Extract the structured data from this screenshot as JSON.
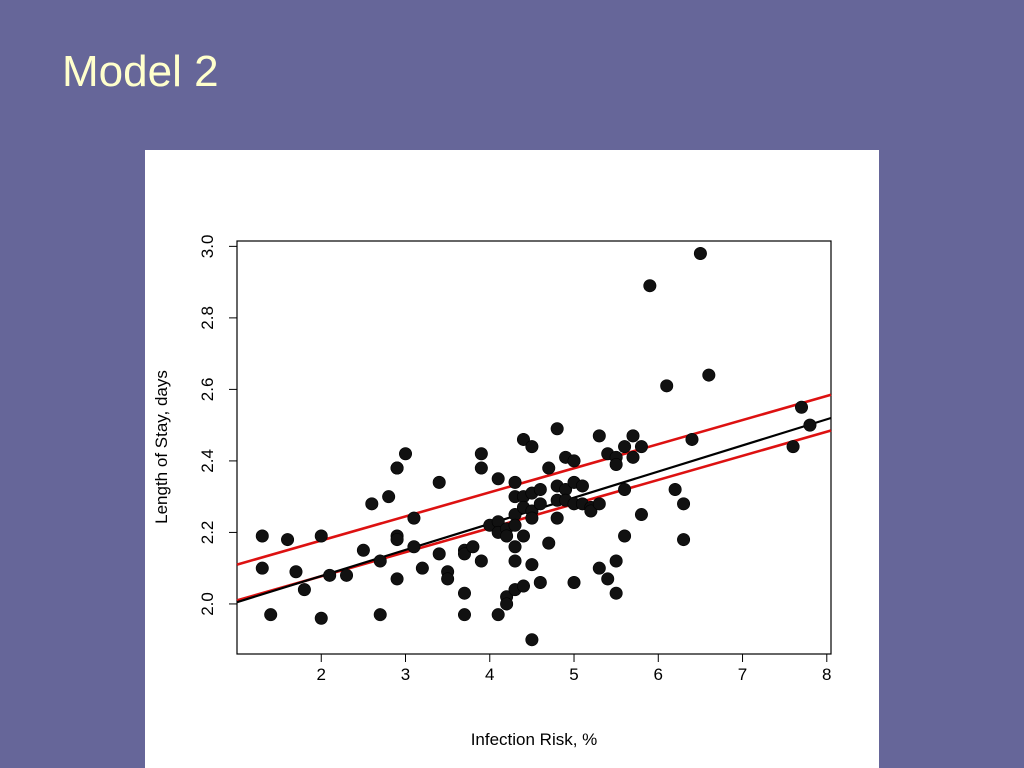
{
  "slide": {
    "title": "Model 2"
  },
  "chart_data": {
    "type": "scatter",
    "xlabel": "Infection Risk, %",
    "ylabel": "Length of Stay, days",
    "xlim": [
      1.0,
      8.05
    ],
    "ylim": [
      1.86,
      3.015
    ],
    "x_ticks": [
      "2",
      "3",
      "4",
      "5",
      "6",
      "7",
      "8"
    ],
    "y_ticks": [
      "2.0",
      "2.2",
      "2.4",
      "2.6",
      "2.8",
      "3.0"
    ],
    "grid": false,
    "legend": "none",
    "colors": {
      "points": "#111111",
      "fit": "#000000",
      "band": "#DD1111"
    },
    "points": [
      [
        1.3,
        2.19
      ],
      [
        1.3,
        2.1
      ],
      [
        1.4,
        1.97
      ],
      [
        1.6,
        2.18
      ],
      [
        1.7,
        2.09
      ],
      [
        1.8,
        2.04
      ],
      [
        2.0,
        2.19
      ],
      [
        2.0,
        1.96
      ],
      [
        2.1,
        2.08
      ],
      [
        2.3,
        2.08
      ],
      [
        2.5,
        2.15
      ],
      [
        2.6,
        2.28
      ],
      [
        2.7,
        2.12
      ],
      [
        2.7,
        1.97
      ],
      [
        2.8,
        2.3
      ],
      [
        2.9,
        2.38
      ],
      [
        2.9,
        2.38
      ],
      [
        2.9,
        2.19
      ],
      [
        2.9,
        2.18
      ],
      [
        2.9,
        2.07
      ],
      [
        3.0,
        2.42
      ],
      [
        3.1,
        2.24
      ],
      [
        3.1,
        2.16
      ],
      [
        3.2,
        2.1
      ],
      [
        3.4,
        2.34
      ],
      [
        3.4,
        2.14
      ],
      [
        3.5,
        2.09
      ],
      [
        3.5,
        2.07
      ],
      [
        3.7,
        2.15
      ],
      [
        3.7,
        2.14
      ],
      [
        3.7,
        2.03
      ],
      [
        3.7,
        1.97
      ],
      [
        3.8,
        2.16
      ],
      [
        3.9,
        2.42
      ],
      [
        3.9,
        2.38
      ],
      [
        3.9,
        2.12
      ],
      [
        4.0,
        2.22
      ],
      [
        4.1,
        2.35
      ],
      [
        4.1,
        2.23
      ],
      [
        4.1,
        2.2
      ],
      [
        4.1,
        1.97
      ],
      [
        4.2,
        2.21
      ],
      [
        4.2,
        2.19
      ],
      [
        4.2,
        2.02
      ],
      [
        4.2,
        2.0
      ],
      [
        4.3,
        2.34
      ],
      [
        4.3,
        2.3
      ],
      [
        4.3,
        2.25
      ],
      [
        4.3,
        2.22
      ],
      [
        4.3,
        2.16
      ],
      [
        4.3,
        2.12
      ],
      [
        4.3,
        2.04
      ],
      [
        4.4,
        2.46
      ],
      [
        4.4,
        2.3
      ],
      [
        4.4,
        2.27
      ],
      [
        4.4,
        2.19
      ],
      [
        4.4,
        2.05
      ],
      [
        4.5,
        2.44
      ],
      [
        4.5,
        2.31
      ],
      [
        4.5,
        2.26
      ],
      [
        4.5,
        2.24
      ],
      [
        4.5,
        2.11
      ],
      [
        4.5,
        1.9
      ],
      [
        4.6,
        2.32
      ],
      [
        4.6,
        2.28
      ],
      [
        4.6,
        2.06
      ],
      [
        4.7,
        2.38
      ],
      [
        4.7,
        2.17
      ],
      [
        4.8,
        2.49
      ],
      [
        4.8,
        2.33
      ],
      [
        4.8,
        2.29
      ],
      [
        4.8,
        2.24
      ],
      [
        4.9,
        2.41
      ],
      [
        4.9,
        2.32
      ],
      [
        4.9,
        2.29
      ],
      [
        5.0,
        2.4
      ],
      [
        5.0,
        2.34
      ],
      [
        5.0,
        2.28
      ],
      [
        5.0,
        2.06
      ],
      [
        5.1,
        2.33
      ],
      [
        5.1,
        2.28
      ],
      [
        5.2,
        2.27
      ],
      [
        5.2,
        2.26
      ],
      [
        5.3,
        2.47
      ],
      [
        5.3,
        2.28
      ],
      [
        5.3,
        2.1
      ],
      [
        5.4,
        2.42
      ],
      [
        5.4,
        2.07
      ],
      [
        5.5,
        2.41
      ],
      [
        5.5,
        2.39
      ],
      [
        5.5,
        2.12
      ],
      [
        5.5,
        2.03
      ],
      [
        5.6,
        2.44
      ],
      [
        5.6,
        2.32
      ],
      [
        5.6,
        2.19
      ],
      [
        5.7,
        2.47
      ],
      [
        5.7,
        2.41
      ],
      [
        5.8,
        2.44
      ],
      [
        5.8,
        2.25
      ],
      [
        5.9,
        2.89
      ],
      [
        6.1,
        2.61
      ],
      [
        6.2,
        2.32
      ],
      [
        6.3,
        2.28
      ],
      [
        6.3,
        2.18
      ],
      [
        6.4,
        2.46
      ],
      [
        6.5,
        2.98
      ],
      [
        6.6,
        2.64
      ],
      [
        7.6,
        2.44
      ],
      [
        7.7,
        2.55
      ],
      [
        7.8,
        2.5
      ]
    ],
    "fit_line": {
      "x": [
        1.0,
        8.05
      ],
      "y": [
        2.005,
        2.52
      ]
    },
    "confidence_band": {
      "upper": {
        "x": [
          1.0,
          8.05
        ],
        "y": [
          2.11,
          2.585
        ]
      },
      "lower": {
        "x": [
          1.0,
          8.05
        ],
        "y": [
          2.01,
          2.485
        ]
      }
    }
  }
}
